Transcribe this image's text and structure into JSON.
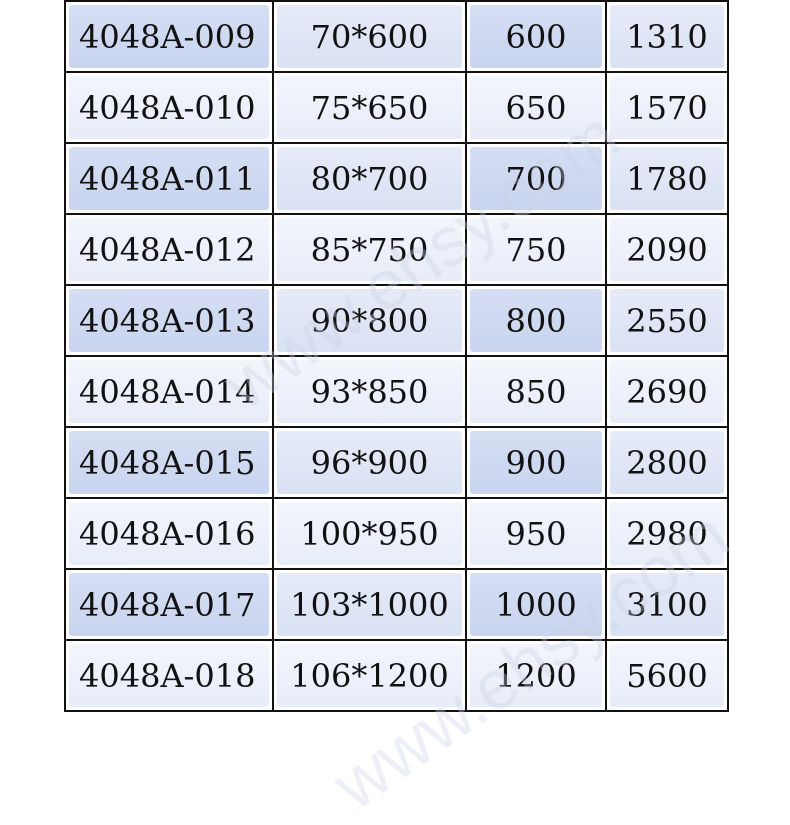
{
  "table": {
    "rows": [
      [
        "4048A-009",
        "70*600",
        "600",
        "1310"
      ],
      [
        "4048A-010",
        "75*650",
        "650",
        "1570"
      ],
      [
        "4048A-011",
        "80*700",
        "700",
        "1780"
      ],
      [
        "4048A-012",
        "85*750",
        "750",
        "2090"
      ],
      [
        "4048A-013",
        "90*800",
        "800",
        "2550"
      ],
      [
        "4048A-014",
        "93*850",
        "850",
        "2690"
      ],
      [
        "4048A-015",
        "96*900",
        "900",
        "2800"
      ],
      [
        "4048A-016",
        "100*950",
        "950",
        "2980"
      ],
      [
        "4048A-017",
        "103*1000",
        "1000",
        "3100"
      ],
      [
        "4048A-018",
        "106*1200",
        "1200",
        "5600"
      ]
    ]
  },
  "watermark": "www.ehsy.com"
}
